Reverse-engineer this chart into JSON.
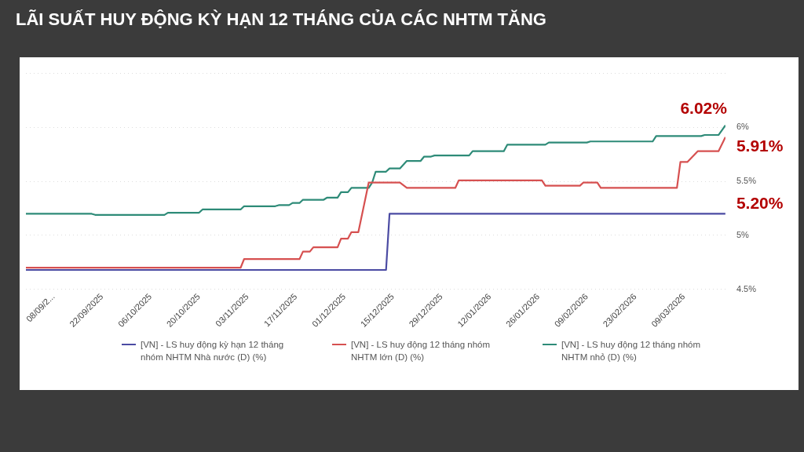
{
  "chart_data": {
    "type": "line",
    "title": "LÃI SUẤT HUY ĐỘNG KỲ HẠN 12 THÁNG CỦA CÁC NHTM TĂNG",
    "series": [
      {
        "name": "[VN] - LS huy động kỳ hạn 12 tháng nhóm NHTM Nhà nước (D) (%)",
        "color": "#4b4ba3",
        "x": [
          "2025-08-31",
          "2025-12-13",
          "2025-12-14",
          "2026-03-21"
        ],
        "values": [
          4.68,
          4.68,
          5.2,
          5.2
        ]
      },
      {
        "name": "[VN] - LS huy động 12 tháng nhóm NHTM lớn (D) (%)",
        "color": "#d65050",
        "x": [
          "2025-08-31",
          "2025-11-01",
          "2025-11-02",
          "2025-11-18",
          "2025-11-19",
          "2025-11-21",
          "2025-11-22",
          "2025-11-29",
          "2025-11-30",
          "2025-12-02",
          "2025-12-03",
          "2025-12-05",
          "2025-12-08",
          "2025-12-17",
          "2025-12-19",
          "2026-01-02",
          "2026-01-03",
          "2026-01-27",
          "2026-01-28",
          "2026-02-07",
          "2026-02-08",
          "2026-02-12",
          "2026-02-13",
          "2026-03-07",
          "2026-03-08",
          "2026-03-10",
          "2026-03-13",
          "2026-03-19",
          "2026-03-21"
        ],
        "values": [
          4.7,
          4.7,
          4.78,
          4.78,
          4.85,
          4.85,
          4.89,
          4.89,
          4.97,
          4.97,
          5.03,
          5.03,
          5.49,
          5.49,
          5.44,
          5.44,
          5.51,
          5.51,
          5.46,
          5.46,
          5.49,
          5.49,
          5.44,
          5.44,
          5.68,
          5.68,
          5.78,
          5.78,
          5.91
        ]
      },
      {
        "name": "[VN] - LS huy động 12 tháng nhóm NHTM nhỏ (D) (%)",
        "color": "#2e8b78",
        "x": [
          "2025-08-31",
          "2025-09-19",
          "2025-09-20",
          "2025-10-10",
          "2025-10-11",
          "2025-10-20",
          "2025-10-21",
          "2025-11-01",
          "2025-11-02",
          "2025-11-11",
          "2025-11-12",
          "2025-11-15",
          "2025-11-16",
          "2025-11-18",
          "2025-11-19",
          "2025-11-25",
          "2025-11-26",
          "2025-11-29",
          "2025-11-30",
          "2025-12-02",
          "2025-12-03",
          "2025-12-08",
          "2025-12-09",
          "2025-12-10",
          "2025-12-13",
          "2025-12-14",
          "2025-12-17",
          "2025-12-19",
          "2025-12-23",
          "2025-12-24",
          "2025-12-26",
          "2025-12-27",
          "2026-01-06",
          "2026-01-07",
          "2026-01-16",
          "2026-01-17",
          "2026-01-28",
          "2026-01-29",
          "2026-02-09",
          "2026-02-10",
          "2026-02-28",
          "2026-03-01",
          "2026-03-14",
          "2026-03-15",
          "2026-03-19",
          "2026-03-21"
        ],
        "values": [
          5.2,
          5.2,
          5.19,
          5.19,
          5.21,
          5.21,
          5.24,
          5.24,
          5.27,
          5.27,
          5.28,
          5.28,
          5.3,
          5.3,
          5.33,
          5.33,
          5.35,
          5.35,
          5.4,
          5.4,
          5.44,
          5.44,
          5.49,
          5.59,
          5.59,
          5.62,
          5.62,
          5.69,
          5.69,
          5.73,
          5.73,
          5.74,
          5.74,
          5.78,
          5.78,
          5.84,
          5.84,
          5.86,
          5.86,
          5.87,
          5.87,
          5.92,
          5.92,
          5.93,
          5.93,
          6.02
        ]
      }
    ],
    "xlim": [
      "2025-08-31",
      "2026-03-21"
    ],
    "xticks": [
      {
        "value": "2025-09-08",
        "label": "08/09/2..."
      },
      {
        "value": "2025-09-22",
        "label": "22/09/2025"
      },
      {
        "value": "2025-10-06",
        "label": "06/10/2025"
      },
      {
        "value": "2025-10-20",
        "label": "20/10/2025"
      },
      {
        "value": "2025-11-03",
        "label": "03/11/2025"
      },
      {
        "value": "2025-11-17",
        "label": "17/11/2025"
      },
      {
        "value": "2025-12-01",
        "label": "01/12/2025"
      },
      {
        "value": "2025-12-15",
        "label": "15/12/2025"
      },
      {
        "value": "2025-12-29",
        "label": "29/12/2025"
      },
      {
        "value": "2026-01-12",
        "label": "12/01/2026"
      },
      {
        "value": "2026-01-26",
        "label": "26/01/2026"
      },
      {
        "value": "2026-02-09",
        "label": "09/02/2026"
      },
      {
        "value": "2026-02-23",
        "label": "23/02/2026"
      },
      {
        "value": "2026-03-09",
        "label": "09/03/2026"
      }
    ],
    "ylim": [
      4.5,
      6.5
    ],
    "yticks": [
      {
        "value": 4.5,
        "label": "4.5%"
      },
      {
        "value": 5,
        "label": "5%"
      },
      {
        "value": 5.5,
        "label": "5.5%"
      },
      {
        "value": 6,
        "label": "6%"
      },
      {
        "value": 6.5,
        "label": null
      }
    ],
    "grid": "y",
    "legend": "bottom",
    "marker": "none",
    "line_style": "solid",
    "annotations": [
      {
        "text": "6.02%",
        "x": "2026-03-21",
        "y": 6.02
      },
      {
        "text": "5.91%",
        "x": "2026-03-21",
        "y": 5.91
      },
      {
        "text": "5.20%",
        "x": "2026-03-21",
        "y": 5.2
      }
    ]
  }
}
